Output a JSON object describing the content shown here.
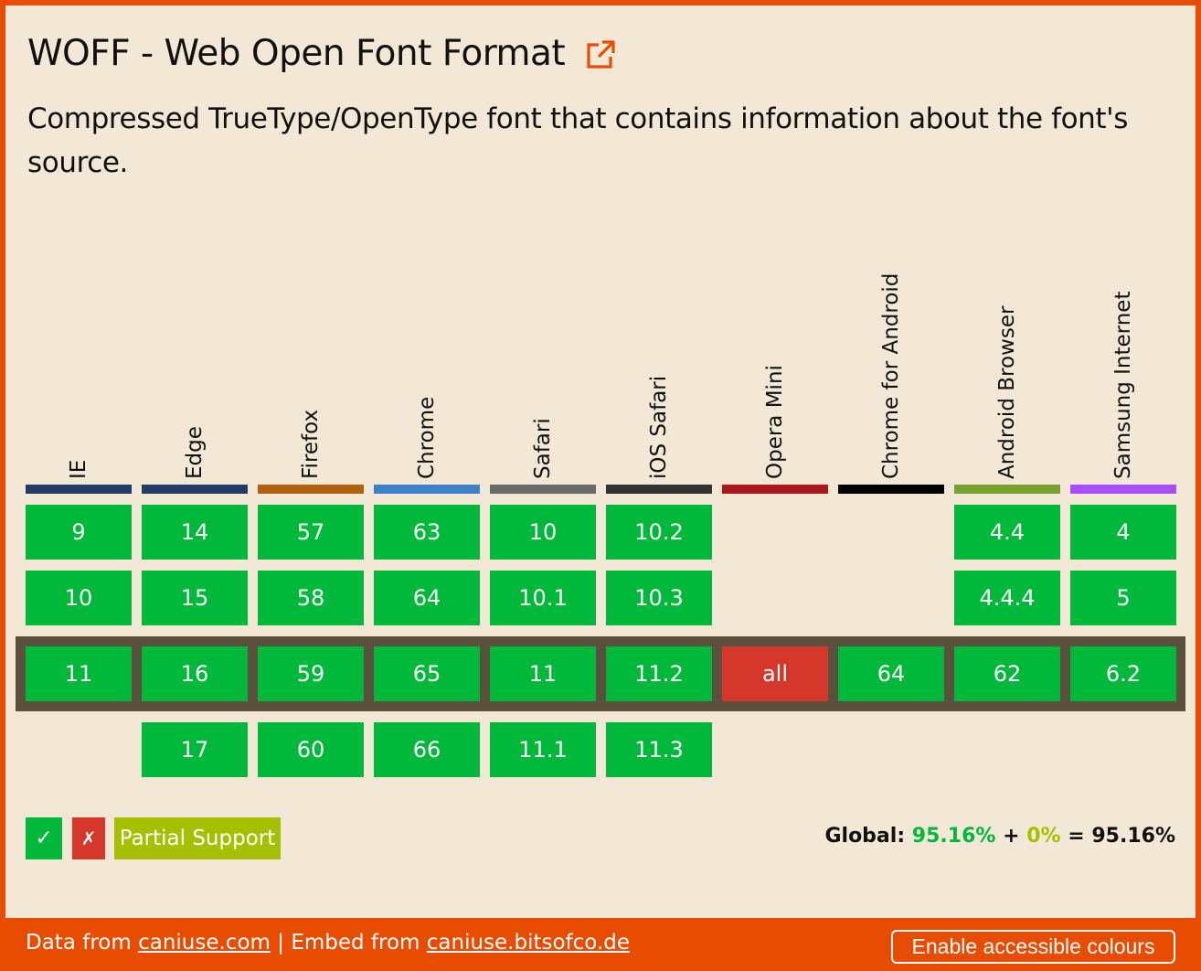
{
  "title": "WOFF - Web Open Font Format",
  "description": "Compressed TrueType/OpenType font that contains information about the font's source.",
  "browsers": [
    {
      "name": "IE",
      "color": "#1f3d66",
      "versions": [
        {
          "v": "9",
          "s": "y"
        },
        {
          "v": "10",
          "s": "y"
        },
        {
          "v": "11",
          "s": "y"
        },
        null
      ]
    },
    {
      "name": "Edge",
      "color": "#1f3d66",
      "versions": [
        {
          "v": "14",
          "s": "y"
        },
        {
          "v": "15",
          "s": "y"
        },
        {
          "v": "16",
          "s": "y"
        },
        {
          "v": "17",
          "s": "y"
        }
      ]
    },
    {
      "name": "Firefox",
      "color": "#b0620f",
      "versions": [
        {
          "v": "57",
          "s": "y"
        },
        {
          "v": "58",
          "s": "y"
        },
        {
          "v": "59",
          "s": "y"
        },
        {
          "v": "60",
          "s": "y"
        }
      ]
    },
    {
      "name": "Chrome",
      "color": "#3b82c8",
      "versions": [
        {
          "v": "63",
          "s": "y"
        },
        {
          "v": "64",
          "s": "y"
        },
        {
          "v": "65",
          "s": "y"
        },
        {
          "v": "66",
          "s": "y"
        }
      ]
    },
    {
      "name": "Safari",
      "color": "#6a6a6a",
      "versions": [
        {
          "v": "10",
          "s": "y"
        },
        {
          "v": "10.1",
          "s": "y"
        },
        {
          "v": "11",
          "s": "y"
        },
        {
          "v": "11.1",
          "s": "y"
        }
      ]
    },
    {
      "name": "iOS Safari",
      "color": "#333333",
      "versions": [
        {
          "v": "10.2",
          "s": "y"
        },
        {
          "v": "10.3",
          "s": "y"
        },
        {
          "v": "11.2",
          "s": "y"
        },
        {
          "v": "11.3",
          "s": "y"
        }
      ]
    },
    {
      "name": "Opera Mini",
      "color": "#a8191e",
      "versions": [
        null,
        null,
        {
          "v": "all",
          "s": "n"
        },
        null
      ]
    },
    {
      "name": "Chrome for Android",
      "color": "#000000",
      "versions": [
        null,
        null,
        {
          "v": "64",
          "s": "y"
        },
        null
      ]
    },
    {
      "name": "Android Browser",
      "color": "#78a22f",
      "versions": [
        {
          "v": "4.4",
          "s": "y"
        },
        {
          "v": "4.4.4",
          "s": "y"
        },
        {
          "v": "62",
          "s": "y"
        },
        null
      ]
    },
    {
      "name": "Samsung Internet",
      "color": "#a64dff",
      "versions": [
        {
          "v": "4",
          "s": "y"
        },
        {
          "v": "5",
          "s": "y"
        },
        {
          "v": "6.2",
          "s": "y"
        },
        null
      ]
    }
  ],
  "legend": {
    "supported": "✓",
    "unsupported": "✗",
    "partial": "Partial Support"
  },
  "global": {
    "label": "Global:",
    "supported": "95.16%",
    "plus": "+",
    "partial": "0%",
    "equals": "=",
    "total": "95.16%"
  },
  "footer": {
    "data_from": "Data from",
    "data_link": "caniuse.com",
    "sep": "|",
    "embed_from": "Embed from",
    "embed_link": "caniuse.bitsofco.de",
    "accessible_button": "Enable accessible colours"
  },
  "colors": {
    "supported": "#00b93a",
    "unsupported": "#d5372a",
    "partial": "#a5c000",
    "accent": "#e84c00"
  }
}
